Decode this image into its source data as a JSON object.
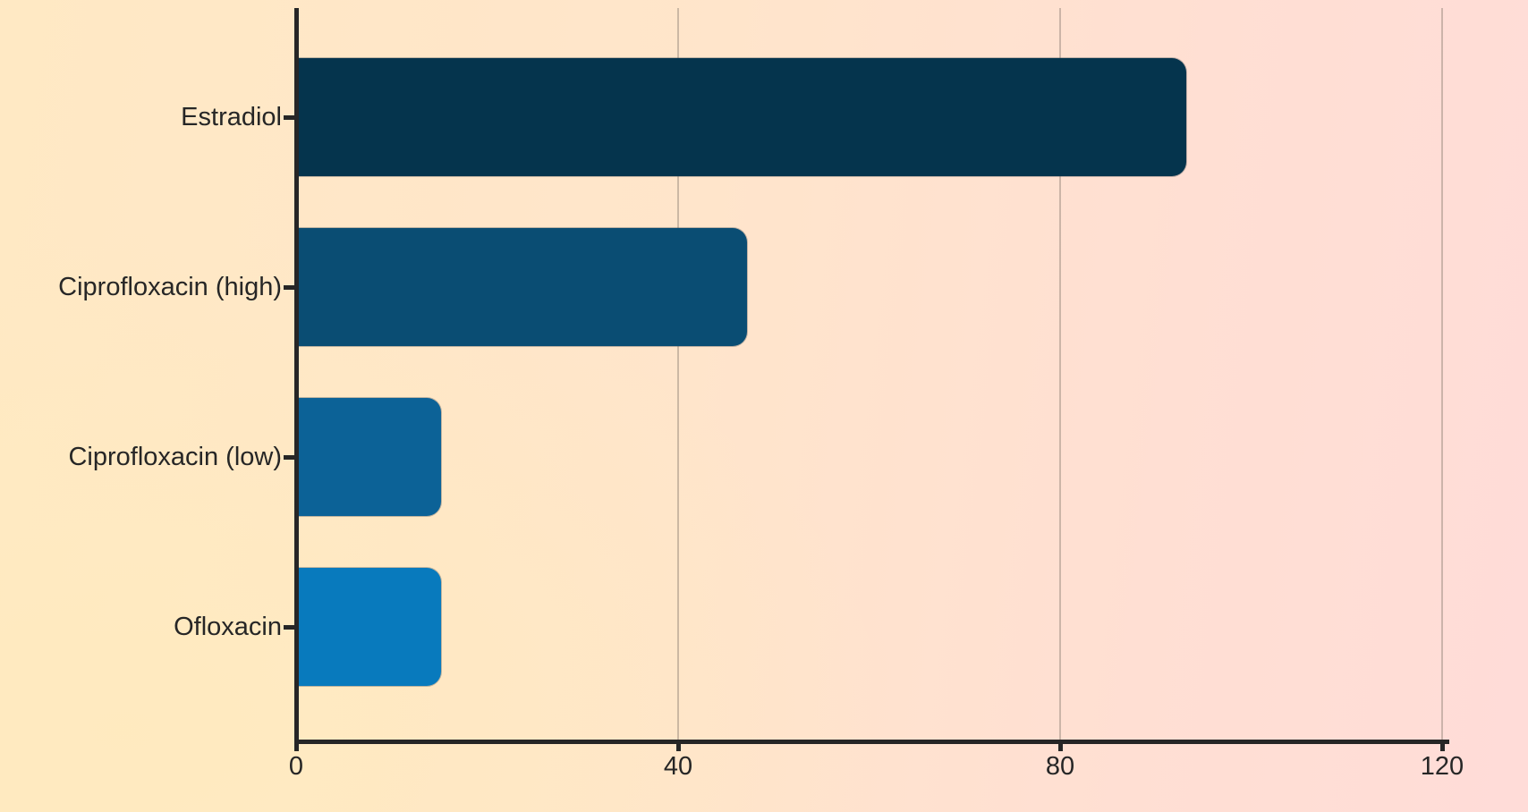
{
  "chart_data": {
    "type": "bar",
    "orientation": "horizontal",
    "title": "",
    "xlabel": "",
    "ylabel": "",
    "categories": [
      "Estradiol",
      "Ciprofloxacin (high)",
      "Ciprofloxacin (low)",
      "Ofloxacin"
    ],
    "values": [
      93,
      47,
      15,
      15
    ],
    "bar_colors": [
      "#05344d",
      "#0a4d73",
      "#0c6297",
      "#087abd"
    ],
    "xlim": [
      0,
      120
    ],
    "xticks": [
      0,
      40,
      80,
      120
    ],
    "xtick_labels": [
      "0",
      "40",
      "80",
      "120"
    ],
    "grid": "vertical-gridlines-at-xticks",
    "legend": "none"
  },
  "colors": {
    "background_left": "#ffe9c4",
    "background_right_top": "#ffdcd8",
    "background_right_bottom": "#ffd9c7",
    "axis": "#262626",
    "text": "#262626",
    "gridline": "rgba(122,110,100,0.38)"
  }
}
